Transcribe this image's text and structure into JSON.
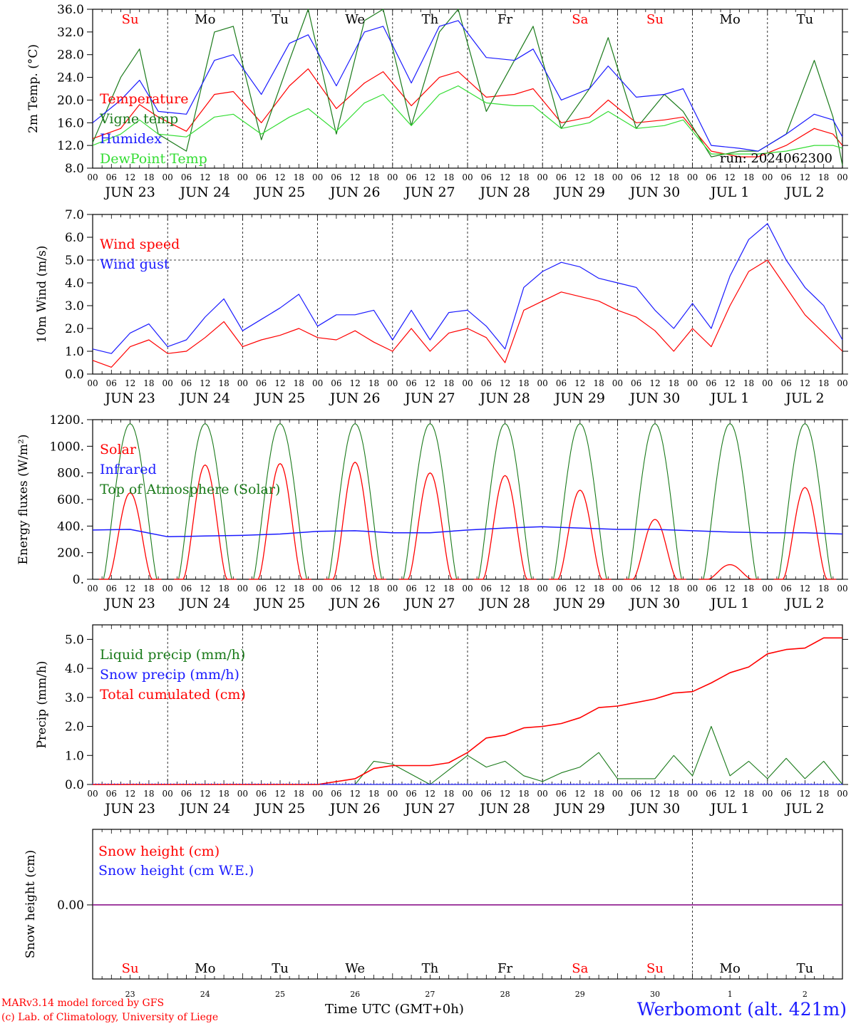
{
  "footer": {
    "credit_line1": "MARv3.14 model forced by GFS",
    "credit_line2": "(c) Lab. of Climatology, University of Liege",
    "station": "Werbomont (alt. 421m)",
    "time_label": "Time UTC (GMT+0h)"
  },
  "common": {
    "hour_ticks": [
      "00",
      "06",
      "12",
      "18"
    ],
    "date_labels": [
      "JUN 23",
      "JUN 24",
      "JUN 25",
      "JUN 26",
      "JUN 27",
      "JUN 28",
      "JUN 29",
      "JUN 30",
      "JUL  1",
      "JUL  2"
    ],
    "weekdays": [
      "Su",
      "Mo",
      "Tu",
      "We",
      "Th",
      "Fr",
      "Sa",
      "Su",
      "Mo",
      "Tu"
    ],
    "weekday_colors": [
      "#ff0000",
      "#000000",
      "#000000",
      "#000000",
      "#000000",
      "#000000",
      "#ff0000",
      "#ff0000",
      "#000000",
      "#000000"
    ],
    "day_numbers": [
      "23",
      "24",
      "25",
      "26",
      "27",
      "28",
      "29",
      "30",
      "1",
      "2"
    ],
    "colors": {
      "red": "#ff0000",
      "dark_green": "#1a7a1a",
      "blue": "#1a1aff",
      "light_green": "#33dd33",
      "purple": "#800080"
    }
  },
  "chart_data": [
    {
      "type": "line",
      "ylabel": "2m Temp. (°C)",
      "ylim": [
        8,
        36
      ],
      "yticks": [
        "8.0",
        "12.0",
        "16.0",
        "20.0",
        "24.0",
        "28.0",
        "32.0",
        "36.0"
      ],
      "annotation": "run: 2024062300",
      "x_hours": [
        0,
        9,
        15,
        21,
        30,
        39,
        45,
        54,
        63,
        69,
        78,
        87,
        93,
        102,
        111,
        117,
        126,
        135,
        141,
        150,
        159,
        165,
        174,
        183,
        189,
        198,
        207,
        213,
        222,
        231,
        237,
        240
      ],
      "series": [
        {
          "name": "Temperature",
          "color": "#ff0000",
          "values": [
            13.2,
            15.0,
            19.2,
            17.0,
            14.5,
            21.0,
            21.5,
            16.0,
            22.5,
            25.5,
            18.5,
            23.0,
            25.0,
            19.0,
            24.0,
            25.0,
            20.5,
            21.0,
            22.0,
            16.0,
            17.0,
            20.0,
            16.0,
            16.5,
            17.0,
            11.0,
            10.0,
            10.0,
            12.0,
            15.0,
            14.0,
            12.0
          ]
        },
        {
          "name": "Vigne temp",
          "color": "#1a7a1a",
          "values": [
            12.5,
            24.0,
            29.0,
            14.0,
            11.0,
            32.0,
            33.0,
            13.0,
            27.0,
            36.0,
            14.0,
            34.0,
            36.0,
            15.5,
            32.0,
            36.0,
            18.0,
            27.0,
            33.0,
            15.0,
            22.0,
            31.0,
            15.0,
            21.0,
            18.0,
            10.0,
            11.0,
            11.0,
            14.0,
            27.0,
            17.0,
            8.5
          ]
        },
        {
          "name": "Humidex",
          "color": "#1a1aff",
          "values": [
            16.0,
            20.0,
            23.5,
            18.0,
            17.5,
            27.0,
            28.0,
            21.0,
            30.0,
            31.5,
            22.5,
            32.0,
            33.0,
            23.0,
            33.0,
            34.0,
            27.5,
            27.0,
            29.0,
            20.0,
            22.0,
            26.0,
            20.5,
            21.0,
            22.0,
            12.0,
            11.5,
            11.0,
            14.0,
            17.5,
            16.5,
            13.5
          ]
        },
        {
          "name": "DewPoint Temp",
          "color": "#33dd33",
          "values": [
            12.0,
            14.0,
            16.5,
            14.0,
            13.5,
            17.0,
            17.5,
            14.0,
            17.0,
            18.5,
            14.5,
            19.5,
            21.0,
            15.5,
            21.0,
            22.5,
            19.5,
            19.0,
            19.0,
            15.0,
            16.0,
            18.0,
            15.0,
            15.5,
            16.5,
            10.5,
            10.5,
            10.5,
            11.0,
            12.0,
            12.0,
            11.5
          ]
        }
      ]
    },
    {
      "type": "line",
      "ylabel": "10m Wind (m/s)",
      "ylim": [
        0,
        7
      ],
      "yticks": [
        "0.0",
        "1.0",
        "2.0",
        "3.0",
        "4.0",
        "5.0",
        "6.0",
        "7.0"
      ],
      "reference_line": 5.0,
      "x_hours": [
        0,
        6,
        12,
        18,
        24,
        30,
        36,
        42,
        48,
        54,
        60,
        66,
        72,
        78,
        84,
        90,
        96,
        102,
        108,
        114,
        120,
        126,
        132,
        138,
        144,
        150,
        156,
        162,
        168,
        174,
        180,
        186,
        192,
        198,
        204,
        210,
        216,
        222,
        228,
        234,
        240
      ],
      "series": [
        {
          "name": "Wind speed",
          "color": "#ff0000",
          "values": [
            0.6,
            0.3,
            1.2,
            1.5,
            0.9,
            1.0,
            1.6,
            2.3,
            1.2,
            1.5,
            1.7,
            2.0,
            1.6,
            1.5,
            1.9,
            1.4,
            1.0,
            2.0,
            1.0,
            1.8,
            2.0,
            1.6,
            0.5,
            2.8,
            3.2,
            3.6,
            3.4,
            3.2,
            2.8,
            2.5,
            1.9,
            1.0,
            2.0,
            1.2,
            3.0,
            4.5,
            5.0,
            3.8,
            2.6,
            1.8,
            1.0
          ]
        },
        {
          "name": "Wind gust",
          "color": "#1a1aff",
          "values": [
            1.1,
            0.9,
            1.8,
            2.2,
            1.2,
            1.5,
            2.5,
            3.3,
            1.9,
            2.4,
            2.9,
            3.5,
            2.1,
            2.6,
            2.6,
            2.8,
            1.5,
            2.8,
            1.5,
            2.7,
            2.8,
            2.1,
            1.1,
            3.8,
            4.5,
            4.9,
            4.7,
            4.2,
            4.0,
            3.8,
            2.8,
            2.0,
            3.1,
            2.0,
            4.3,
            5.9,
            6.6,
            5.0,
            3.8,
            3.0,
            1.5
          ]
        }
      ]
    },
    {
      "type": "line",
      "ylabel": "Energy fluxes (W/m²)",
      "ylim": [
        0,
        1200
      ],
      "yticks": [
        "0.",
        "200.",
        "400.",
        "600.",
        "800.",
        "1000.",
        "1200."
      ],
      "toa_peak": 1170,
      "solar_peaks": [
        650,
        860,
        870,
        880,
        800,
        780,
        670,
        450,
        110,
        690
      ],
      "infrared_x_hours": [
        0,
        12,
        24,
        36,
        48,
        60,
        72,
        84,
        96,
        108,
        120,
        132,
        144,
        156,
        168,
        180,
        192,
        204,
        216,
        228,
        240
      ],
      "series": [
        {
          "name": "Solar",
          "color": "#ff0000"
        },
        {
          "name": "Infrared",
          "color": "#1a1aff",
          "values": [
            370,
            375,
            320,
            325,
            330,
            340,
            360,
            365,
            350,
            350,
            370,
            385,
            395,
            385,
            375,
            375,
            365,
            355,
            350,
            350,
            340
          ]
        },
        {
          "name": "Top of Atmosphere (Solar)",
          "color": "#1a7a1a"
        }
      ]
    },
    {
      "type": "line",
      "ylabel": "Precip (mm/h)",
      "ylim": [
        0,
        5.5
      ],
      "yticks": [
        "0.0",
        "1.0",
        "2.0",
        "3.0",
        "4.0",
        "5.0"
      ],
      "x_hours": [
        0,
        24,
        48,
        72,
        84,
        90,
        96,
        108,
        114,
        120,
        126,
        132,
        138,
        144,
        150,
        156,
        162,
        168,
        180,
        186,
        192,
        198,
        204,
        210,
        216,
        222,
        228,
        234,
        240
      ],
      "series": [
        {
          "name": "Liquid precip (mm/h)",
          "color": "#1a7a1a",
          "values": [
            0,
            0,
            0,
            0,
            0,
            0.8,
            0.7,
            0,
            0.5,
            1.0,
            0.6,
            0.8,
            0.3,
            0.1,
            0.4,
            0.6,
            1.1,
            0.2,
            0.2,
            1.0,
            0.3,
            2.0,
            0.3,
            0.8,
            0.2,
            0.9,
            0.2,
            0.8,
            0
          ]
        },
        {
          "name": "Snow precip (mm/h)",
          "color": "#1a1aff",
          "values": [
            0,
            0,
            0,
            0,
            0,
            0,
            0,
            0,
            0,
            0,
            0,
            0,
            0,
            0,
            0,
            0,
            0,
            0,
            0,
            0,
            0,
            0,
            0,
            0,
            0,
            0,
            0,
            0,
            0
          ]
        },
        {
          "name": "Total cumulated (cm)",
          "color": "#ff0000",
          "values": [
            0,
            0,
            0,
            0,
            0.2,
            0.55,
            0.65,
            0.65,
            0.75,
            1.1,
            1.6,
            1.7,
            1.95,
            2.0,
            2.1,
            2.3,
            2.65,
            2.7,
            2.95,
            3.15,
            3.2,
            3.5,
            3.85,
            4.05,
            4.5,
            4.65,
            4.7,
            5.05,
            5.05
          ]
        }
      ]
    },
    {
      "type": "line",
      "ylabel": "Snow height (cm)",
      "yticks": [
        "0.00"
      ],
      "x_hours": [
        0,
        240
      ],
      "series": [
        {
          "name": "Snow height (cm)",
          "color": "#ff0000",
          "values": [
            0,
            0
          ]
        },
        {
          "name": "Snow height (cm W.E.)",
          "color": "#1a1aff",
          "values": [
            0,
            0
          ]
        }
      ]
    }
  ]
}
